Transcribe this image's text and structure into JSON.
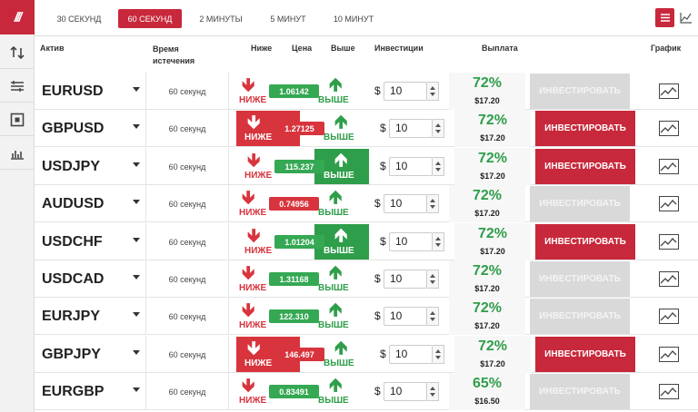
{
  "sidebar": {
    "logo": "///",
    "icons": [
      "swap-arrows-icon",
      "sliders-icon",
      "square-target-icon",
      "bar-chart-icon"
    ]
  },
  "topbar": {
    "tabs": [
      {
        "label": "30 СЕКУНД",
        "active": false
      },
      {
        "label": "60 СЕКУНД",
        "active": true
      },
      {
        "label": "2 МИНУТЫ",
        "active": false
      },
      {
        "label": "5 МИНУТ",
        "active": false
      },
      {
        "label": "10 МИНУТ",
        "active": false
      }
    ],
    "menu_icon": "menu-icon",
    "chart_icon": "line-chart-icon"
  },
  "headers": {
    "asset": "Актив",
    "expiry": "Время истечения",
    "lower": "Ниже",
    "price": "Цена",
    "higher": "Выше",
    "investment": "Инвестиции",
    "payout": "Выплата",
    "chart": "График"
  },
  "labels": {
    "lower": "НИЖЕ",
    "higher": "ВЫШЕ",
    "currency": "$",
    "invest": "ИНВЕСТИРОВАТЬ"
  },
  "colors": {
    "accent": "#c8283b",
    "up": "#2f9e4a",
    "down": "#d8343d",
    "disabled": "#d9d9d9"
  },
  "rows": [
    {
      "asset": "EURUSD",
      "expiry": "60 секунд",
      "price": "1.06142",
      "selected": "none",
      "amount": "10",
      "payout_pct": "72%",
      "payout_amount": "$17.20",
      "invest_active": false
    },
    {
      "asset": "GBPUSD",
      "expiry": "60 секунд",
      "price": "1.27125",
      "selected": "lower",
      "amount": "10",
      "payout_pct": "72%",
      "payout_amount": "$17.20",
      "invest_active": true
    },
    {
      "asset": "USDJPY",
      "expiry": "60 секунд",
      "price": "115.237",
      "selected": "higher",
      "amount": "10",
      "payout_pct": "72%",
      "payout_amount": "$17.20",
      "invest_active": true
    },
    {
      "asset": "AUDUSD",
      "expiry": "60 секунд",
      "price": "0.74956",
      "selected": "none",
      "amount": "10",
      "payout_pct": "72%",
      "payout_amount": "$17.20",
      "invest_active": false
    },
    {
      "asset": "USDCHF",
      "expiry": "60 секунд",
      "price": "1.01204",
      "selected": "higher",
      "amount": "10",
      "payout_pct": "72%",
      "payout_amount": "$17.20",
      "invest_active": true
    },
    {
      "asset": "USDCAD",
      "expiry": "60 секунд",
      "price": "1.31168",
      "selected": "none",
      "amount": "10",
      "payout_pct": "72%",
      "payout_amount": "$17.20",
      "invest_active": false
    },
    {
      "asset": "EURJPY",
      "expiry": "60 секунд",
      "price": "122.310",
      "selected": "none",
      "amount": "10",
      "payout_pct": "72%",
      "payout_amount": "$17.20",
      "invest_active": false
    },
    {
      "asset": "GBPJPY",
      "expiry": "60 секунд",
      "price": "146.497",
      "selected": "lower",
      "amount": "10",
      "payout_pct": "72%",
      "payout_amount": "$17.20",
      "invest_active": true
    },
    {
      "asset": "EURGBP",
      "expiry": "60 секунд",
      "price": "0.83491",
      "selected": "none",
      "amount": "10",
      "payout_pct": "65%",
      "payout_amount": "$16.50",
      "invest_active": false
    }
  ]
}
